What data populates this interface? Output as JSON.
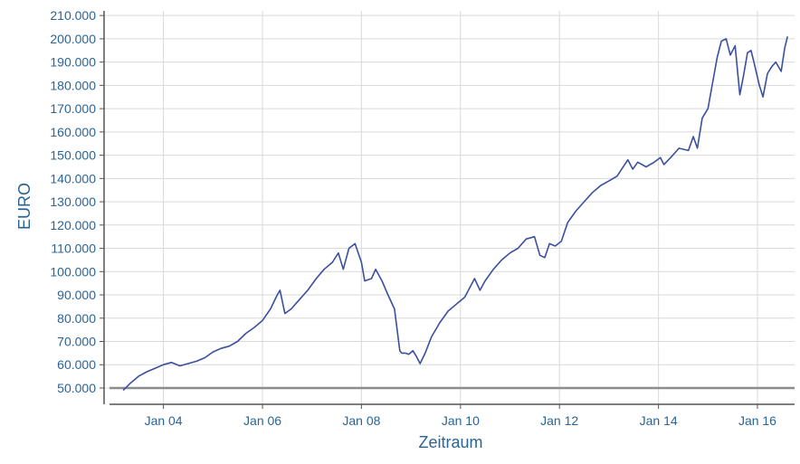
{
  "chart_data": {
    "type": "line",
    "title": "",
    "xlabel": "Zeitraum",
    "ylabel": "EURO",
    "x_type": "date",
    "xlim": [
      "2002-10-20",
      "2016-10-01"
    ],
    "ylim": [
      43000,
      212000
    ],
    "y_ticks": [
      {
        "value": 50000,
        "label": "50.000"
      },
      {
        "value": 60000,
        "label": "60.000"
      },
      {
        "value": 70000,
        "label": "70.000"
      },
      {
        "value": 80000,
        "label": "80.000"
      },
      {
        "value": 90000,
        "label": "90.000"
      },
      {
        "value": 100000,
        "label": "100.000"
      },
      {
        "value": 110000,
        "label": "110.000"
      },
      {
        "value": 120000,
        "label": "120.000"
      },
      {
        "value": 130000,
        "label": "130.000"
      },
      {
        "value": 140000,
        "label": "140.000"
      },
      {
        "value": 150000,
        "label": "150.000"
      },
      {
        "value": 160000,
        "label": "160.000"
      },
      {
        "value": 170000,
        "label": "170.000"
      },
      {
        "value": 180000,
        "label": "180.000"
      },
      {
        "value": 190000,
        "label": "190.000"
      },
      {
        "value": 200000,
        "label": "200.000"
      },
      {
        "value": 210000,
        "label": "210.000"
      }
    ],
    "x_ticks": [
      {
        "value": "2004-01-01",
        "label": "Jan 04"
      },
      {
        "value": "2006-01-01",
        "label": "Jan 06"
      },
      {
        "value": "2008-01-01",
        "label": "Jan 08"
      },
      {
        "value": "2010-01-01",
        "label": "Jan 10"
      },
      {
        "value": "2012-01-01",
        "label": "Jan 12"
      },
      {
        "value": "2014-01-01",
        "label": "Jan 14"
      },
      {
        "value": "2016-01-01",
        "label": "Jan 16"
      }
    ],
    "grid": true,
    "legend": "none",
    "reference_line": {
      "value": 50000
    },
    "colors": {
      "line": "#3b4fa0",
      "reference_line": "#8c8c8c",
      "grid": "#d9d9d9",
      "axis": "#555555",
      "text": "#2a6496"
    },
    "series": [
      {
        "x": [
          "2003-03-10",
          "2003-05-01",
          "2003-07-01",
          "2003-09-01",
          "2003-11-01",
          "2004-01-01",
          "2004-03-01",
          "2004-05-01",
          "2004-07-01",
          "2004-09-01",
          "2004-11-01",
          "2005-01-01",
          "2005-03-01",
          "2005-05-01",
          "2005-07-01",
          "2005-09-01",
          "2005-11-01",
          "2006-01-01",
          "2006-03-01",
          "2006-04-20",
          "2006-05-10",
          "2006-06-15",
          "2006-08-01",
          "2006-10-01",
          "2006-12-01",
          "2007-02-01",
          "2007-04-01",
          "2007-06-01",
          "2007-07-15",
          "2007-08-20",
          "2007-10-01",
          "2007-11-15",
          "2008-01-01",
          "2008-01-25",
          "2008-03-15",
          "2008-04-15",
          "2008-06-01",
          "2008-07-15",
          "2008-09-01",
          "2008-10-10",
          "2008-10-25",
          "2008-11-20",
          "2008-12-15",
          "2009-01-15",
          "2009-02-10",
          "2009-03-09",
          "2009-04-15",
          "2009-06-01",
          "2009-08-01",
          "2009-10-01",
          "2009-12-01",
          "2010-02-01",
          "2010-04-15",
          "2010-05-25",
          "2010-07-01",
          "2010-09-01",
          "2010-11-01",
          "2011-01-01",
          "2011-03-01",
          "2011-05-01",
          "2011-07-01",
          "2011-08-10",
          "2011-09-15",
          "2011-10-20",
          "2011-12-01",
          "2012-01-15",
          "2012-03-01",
          "2012-05-01",
          "2012-07-01",
          "2012-09-01",
          "2012-11-01",
          "2013-01-01",
          "2013-03-01",
          "2013-05-20",
          "2013-06-25",
          "2013-08-01",
          "2013-10-01",
          "2013-12-01",
          "2014-01-15",
          "2014-02-10",
          "2014-04-01",
          "2014-06-01",
          "2014-08-10",
          "2014-09-15",
          "2014-10-15",
          "2014-11-20",
          "2015-01-01",
          "2015-02-01",
          "2015-03-10",
          "2015-04-10",
          "2015-05-15",
          "2015-06-15",
          "2015-07-20",
          "2015-08-24",
          "2015-09-20",
          "2015-10-20",
          "2015-11-15",
          "2015-12-10",
          "2016-01-15",
          "2016-02-11",
          "2016-03-15",
          "2016-04-15",
          "2016-05-15",
          "2016-06-24",
          "2016-07-20",
          "2016-08-10"
        ],
        "y": [
          49000,
          52000,
          55000,
          57000,
          58500,
          60000,
          61000,
          59500,
          60500,
          61500,
          63000,
          65500,
          67000,
          68000,
          70000,
          73500,
          76000,
          79000,
          84000,
          90000,
          92000,
          82000,
          84000,
          88000,
          92000,
          97000,
          101000,
          104000,
          108000,
          101000,
          110000,
          112000,
          104000,
          96000,
          97000,
          101000,
          96000,
          90000,
          84000,
          66000,
          65000,
          65000,
          64500,
          66000,
          63500,
          60500,
          65000,
          72000,
          78000,
          83000,
          86000,
          89000,
          97000,
          92000,
          96000,
          101000,
          105000,
          108000,
          110000,
          114000,
          115000,
          107000,
          106000,
          112000,
          111000,
          113000,
          121000,
          126000,
          130000,
          134000,
          137000,
          139000,
          141000,
          148000,
          144000,
          147000,
          145000,
          147000,
          149000,
          146000,
          149000,
          153000,
          152000,
          158000,
          153000,
          166000,
          170000,
          180000,
          192000,
          199000,
          200000,
          193000,
          197000,
          176000,
          184000,
          194000,
          195000,
          189000,
          180000,
          175000,
          185000,
          188000,
          190000,
          186000,
          196000,
          201000
        ]
      }
    ]
  }
}
